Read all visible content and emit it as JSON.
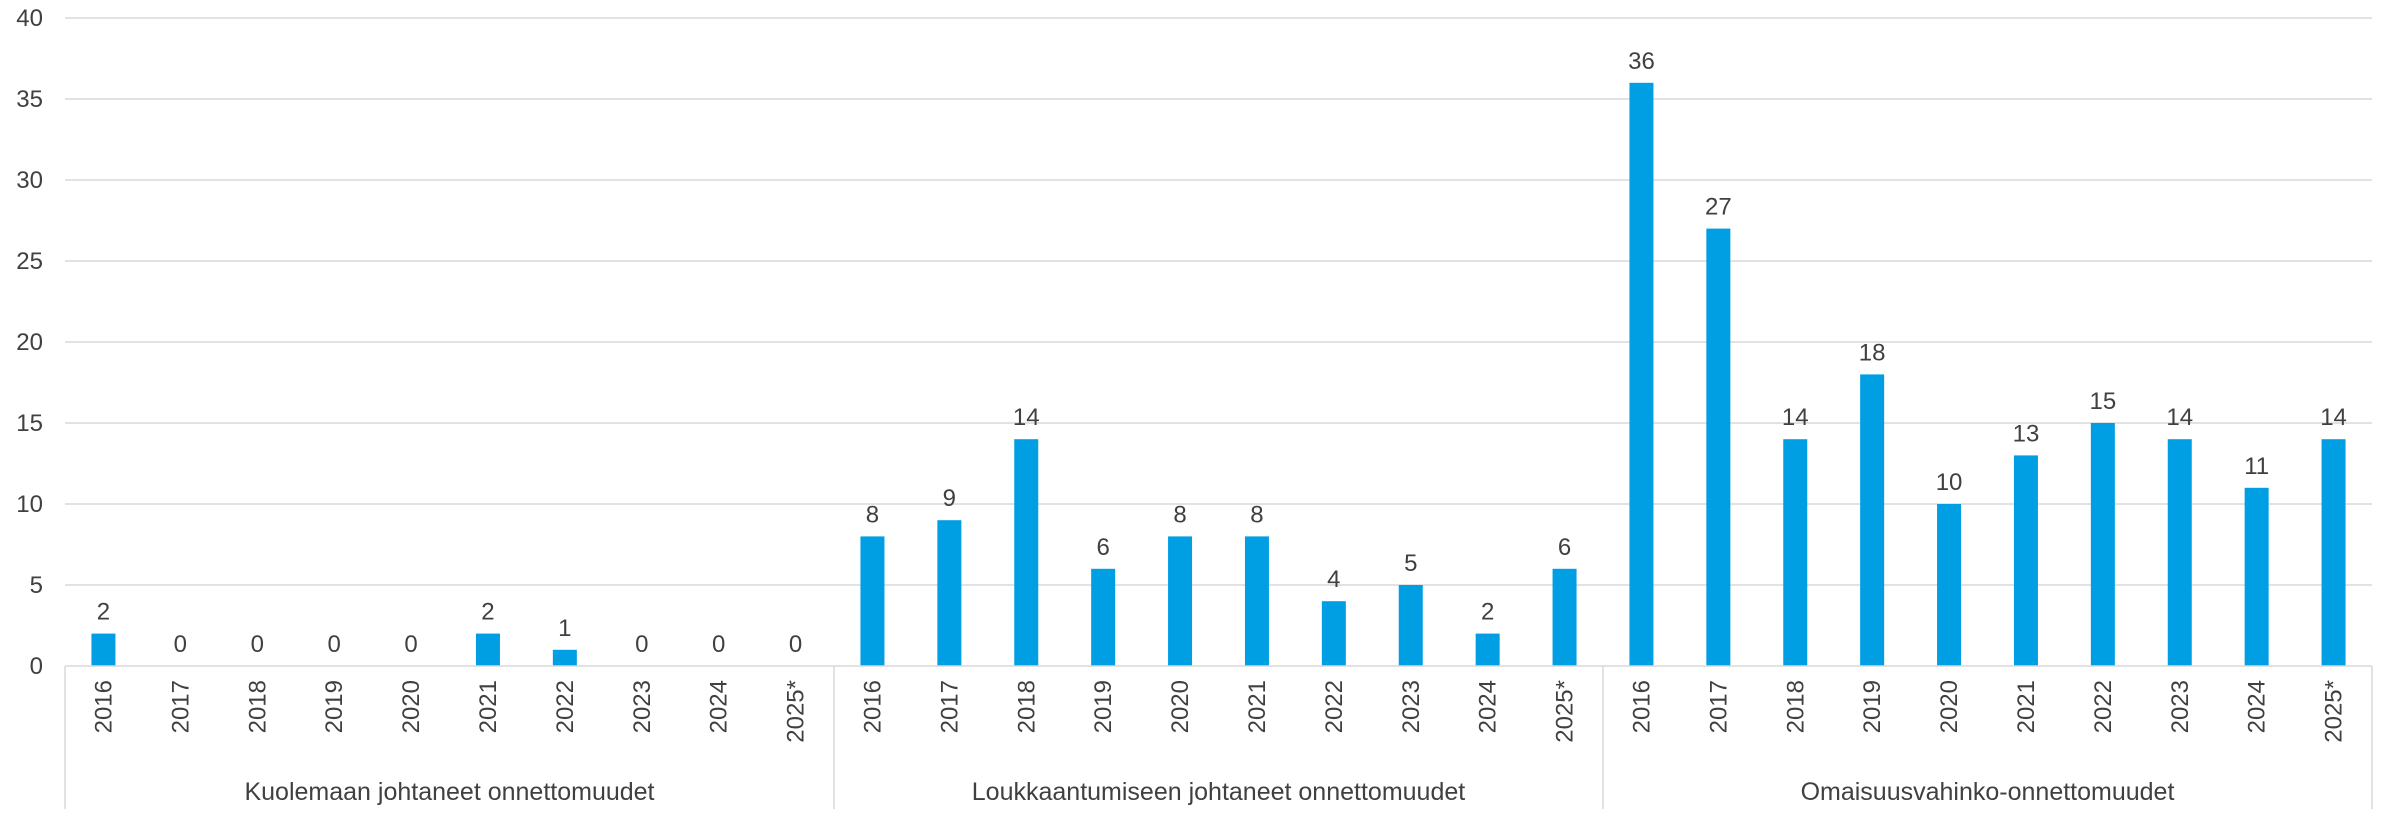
{
  "chart_data": {
    "type": "bar",
    "title": "",
    "xlabel": "",
    "ylabel": "",
    "ylim": [
      0,
      40
    ],
    "yticks": [
      0,
      5,
      10,
      15,
      20,
      25,
      30,
      35,
      40
    ],
    "grid": true,
    "legend": "none",
    "bar_color": "#009FE3",
    "groups": [
      {
        "name": "Kuolemaan johtaneet onnettomuudet",
        "categories": [
          "2016",
          "2017",
          "2018",
          "2019",
          "2020",
          "2021",
          "2022",
          "2023",
          "2024",
          "2025*"
        ],
        "values": [
          2,
          0,
          0,
          0,
          0,
          2,
          1,
          0,
          0,
          0
        ]
      },
      {
        "name": "Loukkaantumiseen johtaneet onnettomuudet",
        "categories": [
          "2016",
          "2017",
          "2018",
          "2019",
          "2020",
          "2021",
          "2022",
          "2023",
          "2024",
          "2025*"
        ],
        "values": [
          8,
          9,
          14,
          6,
          8,
          8,
          4,
          5,
          2,
          6
        ]
      },
      {
        "name": "Omaisuusvahinko-onnettomuudet",
        "categories": [
          "2016",
          "2017",
          "2018",
          "2019",
          "2020",
          "2021",
          "2022",
          "2023",
          "2024",
          "2025*"
        ],
        "values": [
          36,
          27,
          14,
          18,
          10,
          13,
          15,
          14,
          11,
          14
        ]
      }
    ]
  }
}
